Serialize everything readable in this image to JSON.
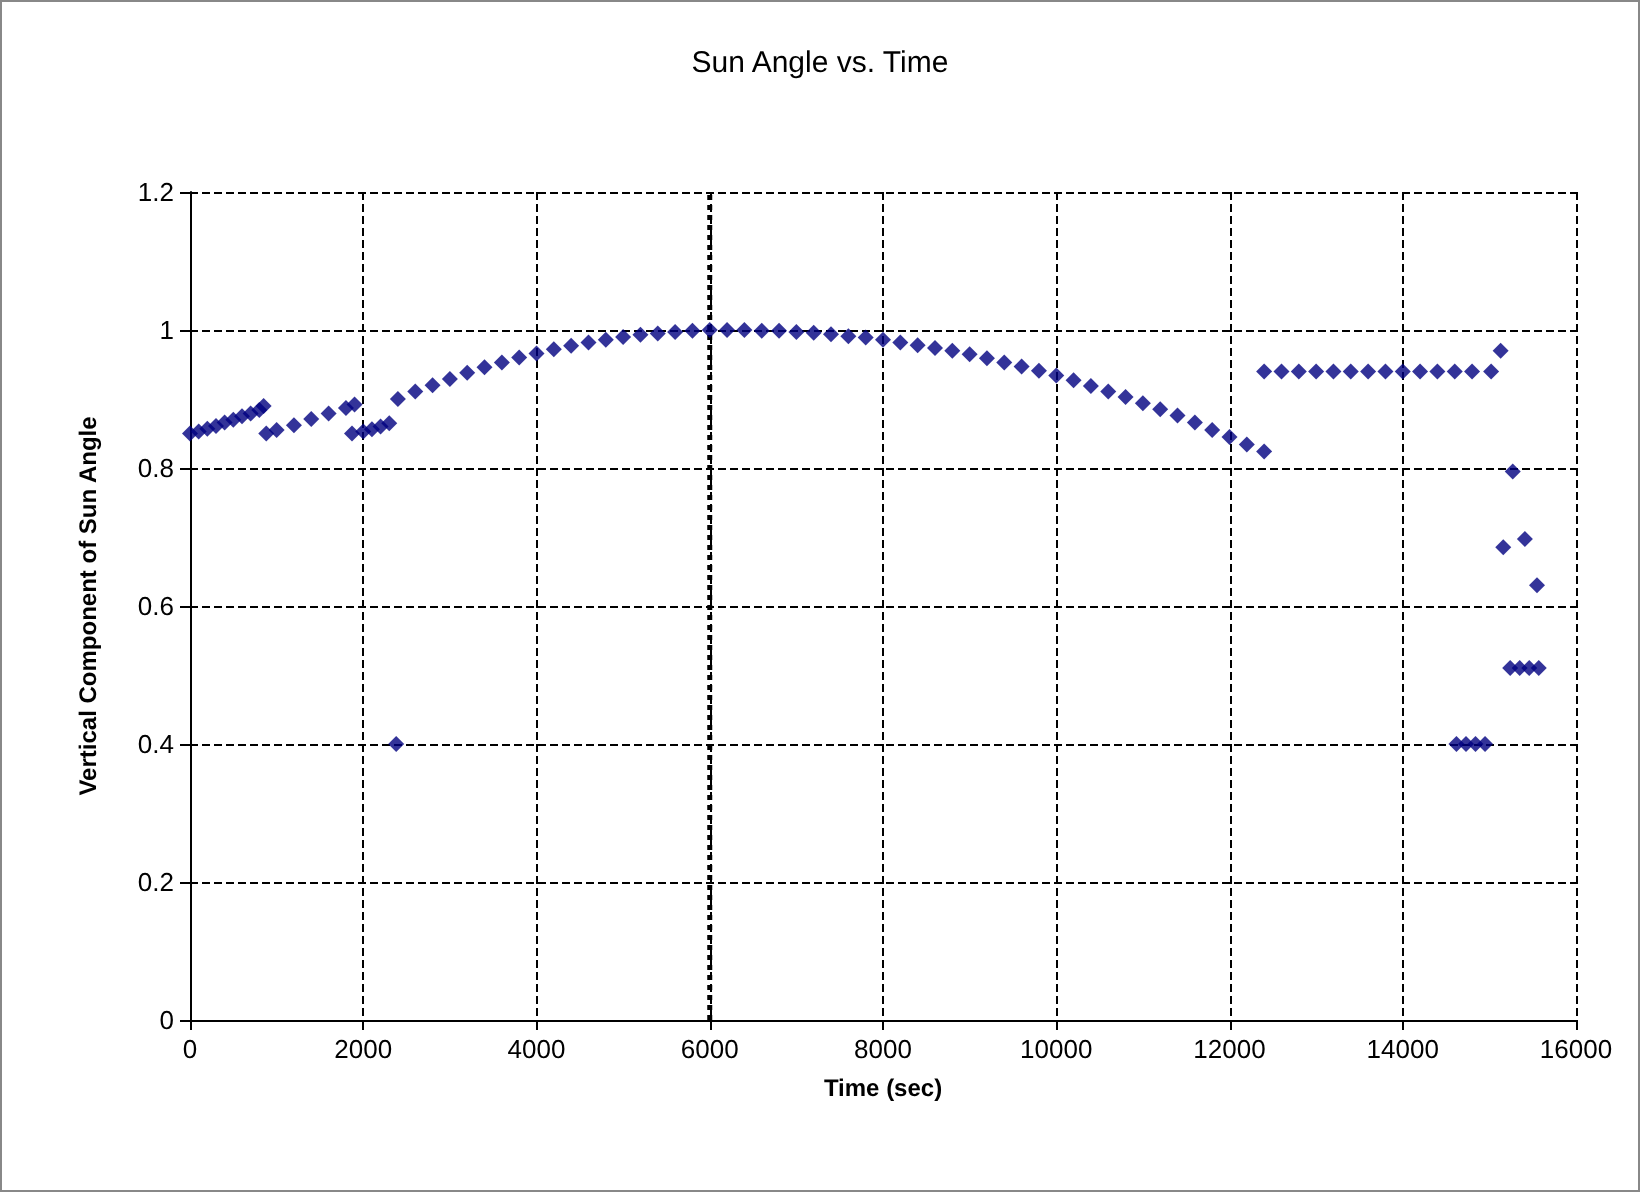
{
  "chart_data": {
    "type": "scatter",
    "title": "Sun Angle vs. Time",
    "xlabel": "Time (sec)",
    "ylabel": "Vertical Component of Sun Angle",
    "x": [
      0,
      100,
      200,
      300,
      400,
      500,
      600,
      700,
      800,
      850,
      880,
      1000,
      1200,
      1400,
      1600,
      1800,
      1900,
      1870,
      2000,
      2100,
      2200,
      2300,
      2380,
      2400,
      2600,
      2800,
      3000,
      3200,
      3400,
      3600,
      3800,
      4000,
      4200,
      4400,
      4600,
      4800,
      5000,
      5200,
      5400,
      5600,
      5800,
      6000,
      6200,
      6400,
      6600,
      6800,
      7000,
      7200,
      7400,
      7600,
      7800,
      8000,
      8200,
      8400,
      8600,
      8800,
      9000,
      9200,
      9400,
      9600,
      9800,
      10000,
      10200,
      10400,
      10600,
      10800,
      11000,
      11200,
      11400,
      11600,
      11800,
      12000,
      12200,
      12400,
      12400,
      12600,
      12800,
      13000,
      13200,
      13400,
      13600,
      13800,
      14000,
      14200,
      14400,
      14600,
      14800,
      14620,
      14730,
      14840,
      14950,
      15020,
      15130,
      15160,
      15270,
      15410,
      15550,
      15240,
      15350,
      15460,
      15570
    ],
    "values": [
      0.85,
      0.853,
      0.857,
      0.861,
      0.866,
      0.87,
      0.875,
      0.879,
      0.884,
      0.89,
      0.85,
      0.855,
      0.862,
      0.871,
      0.879,
      0.887,
      0.892,
      0.85,
      0.853,
      0.856,
      0.86,
      0.865,
      0.4,
      0.9,
      0.911,
      0.92,
      0.929,
      0.938,
      0.946,
      0.953,
      0.96,
      0.966,
      0.972,
      0.977,
      0.982,
      0.986,
      0.99,
      0.993,
      0.995,
      0.997,
      0.999,
      1.0,
      1.0,
      1.0,
      0.999,
      0.999,
      0.997,
      0.996,
      0.994,
      0.991,
      0.989,
      0.986,
      0.982,
      0.978,
      0.974,
      0.97,
      0.965,
      0.959,
      0.953,
      0.947,
      0.941,
      0.934,
      0.927,
      0.919,
      0.911,
      0.903,
      0.894,
      0.885,
      0.876,
      0.866,
      0.855,
      0.845,
      0.834,
      0.824,
      0.94,
      0.94,
      0.94,
      0.94,
      0.94,
      0.94,
      0.94,
      0.94,
      0.94,
      0.94,
      0.94,
      0.94,
      0.94,
      0.4,
      0.4,
      0.4,
      0.4,
      0.94,
      0.97,
      0.685,
      0.795,
      0.697,
      0.63,
      0.51,
      0.51,
      0.51,
      0.51
    ],
    "color": "#000080",
    "marker": "diamond",
    "xlim": [
      0,
      16000
    ],
    "xticks": [
      0,
      2000,
      4000,
      6000,
      8000,
      10000,
      12000,
      14000,
      16000
    ],
    "ylim": [
      0,
      1.2
    ],
    "yticks": [
      0,
      0.2,
      0.4,
      0.6,
      0.8,
      1,
      1.2
    ],
    "grid": true,
    "ref_lines": [
      {
        "axis": "x",
        "value": 6000,
        "line_style": "dotted",
        "color": "#000000"
      }
    ]
  }
}
